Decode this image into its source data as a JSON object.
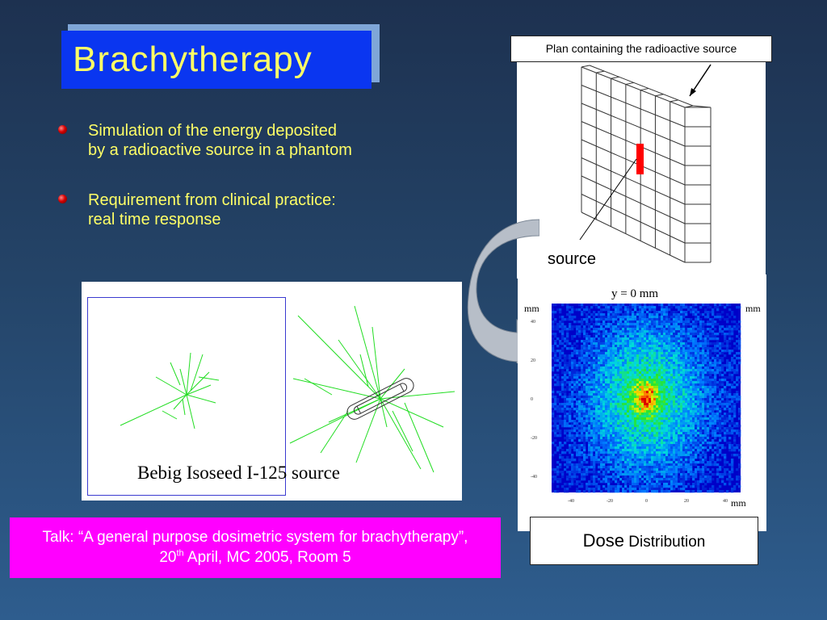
{
  "title": "Brachytherapy",
  "bullets": [
    {
      "lines": [
        "Simulation of the energy deposited",
        "by a radioactive source in a phantom"
      ]
    },
    {
      "lines": [
        "Requirement from clinical practice:",
        "real time response"
      ]
    }
  ],
  "phantom": {
    "plan_label": "Plan containing the radioactive source",
    "source_label": "source"
  },
  "tracks": {
    "caption": "Bebig Isoseed I-125 source"
  },
  "dose": {
    "header": "y = 0 mm",
    "axis_unit_left": "mm",
    "axis_unit_right": "mm",
    "axis_unit_bottom": "mm",
    "y_ticks": [
      "40",
      "20",
      "0",
      "-20",
      "-40"
    ],
    "x_ticks": [
      "-40",
      "-20",
      "0",
      "20",
      "40"
    ],
    "caption_big": "Dose",
    "caption_small": " Distribution"
  },
  "talk": {
    "line1": "Talk: “A general purpose dosimetric system for brachytherapy”,",
    "line2_pre": "20",
    "line2_sup": "th",
    "line2_post": " April, MC 2005, Room 5"
  },
  "colors": {
    "title_bg": "#0a36f0",
    "title_text": "#ffff66",
    "bullet_text": "#ffff66",
    "talk_bg": "#ff00ff",
    "source_red": "#ff0000",
    "track_green": "#22dd22"
  }
}
